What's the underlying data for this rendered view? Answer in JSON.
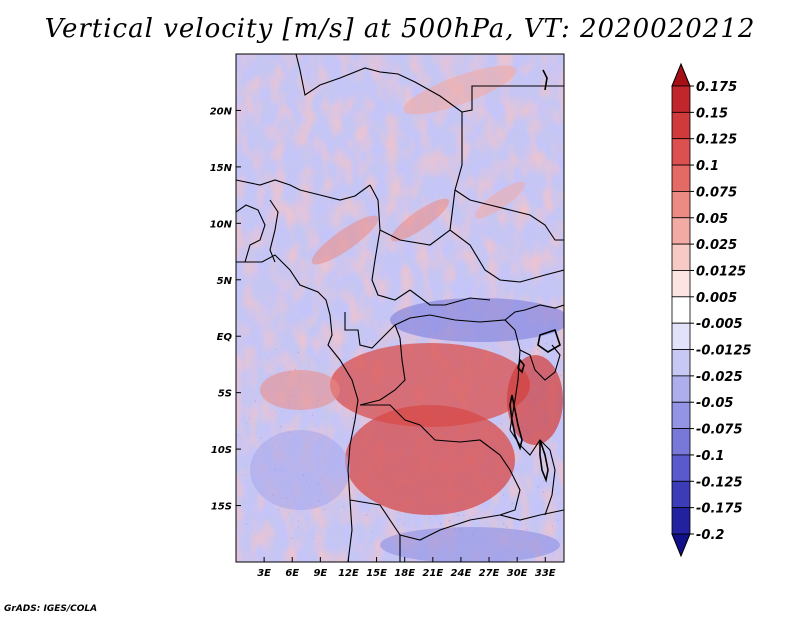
{
  "title": "Vertical velocity [m/s] at 500hPa, VT: 2020020212",
  "credit": "GrADS: IGES/COLA",
  "map": {
    "lon_range": [
      0,
      35
    ],
    "lat_range": [
      -20,
      25
    ],
    "lon_ticks": [
      "3E",
      "6E",
      "9E",
      "12E",
      "15E",
      "18E",
      "21E",
      "24E",
      "27E",
      "30E",
      "33E"
    ],
    "lon_tick_values": [
      3,
      6,
      9,
      12,
      15,
      18,
      21,
      24,
      27,
      30,
      33
    ],
    "lat_ticks": [
      "20N",
      "15N",
      "10N",
      "5N",
      "EQ",
      "5S",
      "10S",
      "15S"
    ],
    "lat_tick_values": [
      20,
      15,
      10,
      5,
      0,
      -5,
      -10,
      -15
    ]
  },
  "colorbar": {
    "labels": [
      "0.175",
      "0.15",
      "0.125",
      "0.1",
      "0.075",
      "0.05",
      "0.025",
      "0.0125",
      "0.005",
      "-0.005",
      "-0.0125",
      "-0.025",
      "-0.05",
      "-0.075",
      "-0.1",
      "-0.125",
      "-0.175",
      "-0.2"
    ],
    "colors": [
      "#a50f15",
      "#c0262b",
      "#d03a3a",
      "#dc5050",
      "#e46a66",
      "#ec8a84",
      "#f2aaa4",
      "#f7cac6",
      "#fbe4e2",
      "#ffffff",
      "#e2e2fb",
      "#c8c8f4",
      "#aeaeec",
      "#9494e4",
      "#7878d8",
      "#5a5acc",
      "#3c3cb8",
      "#2222a0",
      "#10108a"
    ]
  }
}
